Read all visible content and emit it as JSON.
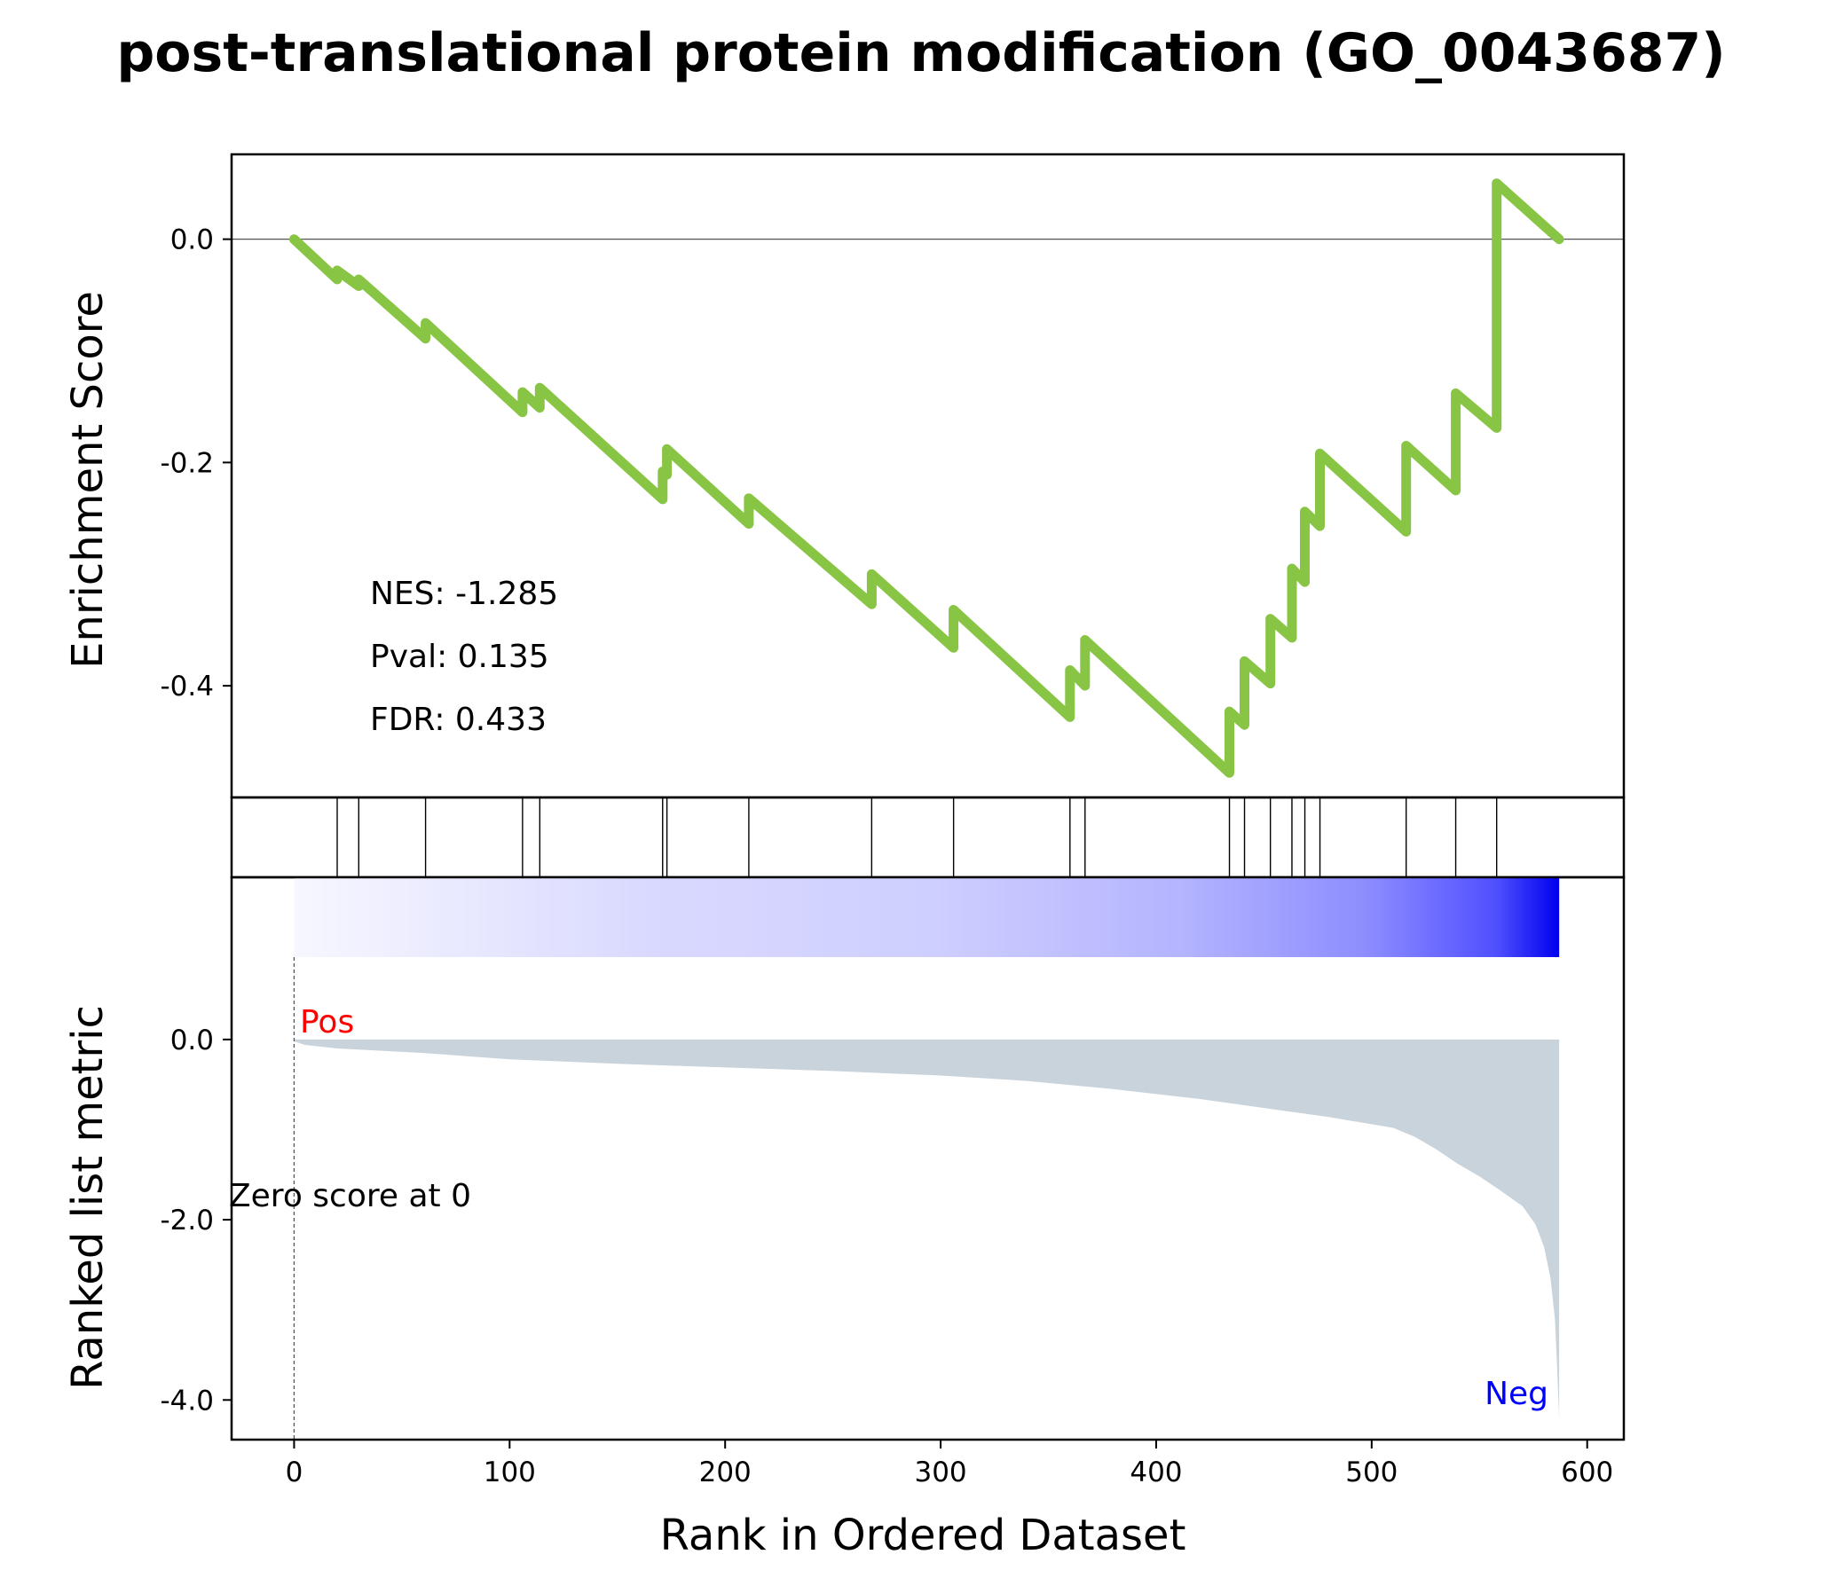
{
  "colors": {
    "es_line": "#88c544",
    "metric_fill": "#c9d3db",
    "pos_label": "#ff0000",
    "neg_label": "#0000ff",
    "heat_high": "#0000ff",
    "heat_low": "#ffffff"
  },
  "chart_data": {
    "type": "line",
    "title": "post-translational protein modification (GO_0043687)",
    "xlabel": "Rank in Ordered Dataset",
    "xlim": [
      -29,
      617
    ],
    "xticks": [
      "0",
      "100",
      "200",
      "300",
      "400",
      "500",
      "600"
    ],
    "stats": {
      "nes": "NES: -1.285",
      "pval": "Pval: 0.135",
      "fdr": "FDR: 0.433"
    },
    "enrichment": {
      "ylabel": "Enrichment Score",
      "ylim": [
        -0.5,
        0.076
      ],
      "yticks": [
        "0.0",
        "-0.2",
        "-0.4"
      ],
      "points": [
        [
          0,
          0.0
        ],
        [
          20,
          -0.036
        ],
        [
          20,
          -0.028
        ],
        [
          30,
          -0.042
        ],
        [
          30,
          -0.036
        ],
        [
          61,
          -0.089
        ],
        [
          61,
          -0.075
        ],
        [
          106,
          -0.155
        ],
        [
          106,
          -0.137
        ],
        [
          114,
          -0.151
        ],
        [
          114,
          -0.133
        ],
        [
          171,
          -0.233
        ],
        [
          171,
          -0.208
        ],
        [
          173,
          -0.211
        ],
        [
          173,
          -0.188
        ],
        [
          211,
          -0.255
        ],
        [
          211,
          -0.232
        ],
        [
          268,
          -0.327
        ],
        [
          268,
          -0.3
        ],
        [
          306,
          -0.366
        ],
        [
          306,
          -0.332
        ],
        [
          360,
          -0.428
        ],
        [
          360,
          -0.386
        ],
        [
          367,
          -0.4
        ],
        [
          367,
          -0.359
        ],
        [
          434,
          -0.478
        ],
        [
          434,
          -0.423
        ],
        [
          441,
          -0.435
        ],
        [
          441,
          -0.378
        ],
        [
          453,
          -0.398
        ],
        [
          453,
          -0.34
        ],
        [
          463,
          -0.357
        ],
        [
          463,
          -0.295
        ],
        [
          469,
          -0.307
        ],
        [
          469,
          -0.244
        ],
        [
          476,
          -0.257
        ],
        [
          476,
          -0.192
        ],
        [
          516,
          -0.262
        ],
        [
          516,
          -0.185
        ],
        [
          539,
          -0.225
        ],
        [
          539,
          -0.138
        ],
        [
          558,
          -0.169
        ],
        [
          558,
          0.05
        ],
        [
          587,
          0.0
        ]
      ]
    },
    "hits": [
      20,
      30,
      61,
      106,
      114,
      171,
      173,
      211,
      268,
      306,
      360,
      367,
      434,
      441,
      453,
      463,
      469,
      476,
      516,
      539,
      558
    ],
    "ranked_metric": {
      "ylabel": "Ranked list metric",
      "ylim": [
        -4.44,
        1.8
      ],
      "yticks": [
        "0.0",
        "-2.0",
        "-4.0"
      ],
      "pos_label": "Pos",
      "neg_label": "Neg",
      "zero_score_label": "Zero score at 0",
      "n_genes": 588,
      "curve": [
        [
          0,
          -0.02
        ],
        [
          5,
          -0.06
        ],
        [
          20,
          -0.1
        ],
        [
          60,
          -0.15
        ],
        [
          100,
          -0.22
        ],
        [
          150,
          -0.27
        ],
        [
          200,
          -0.31
        ],
        [
          250,
          -0.35
        ],
        [
          300,
          -0.4
        ],
        [
          340,
          -0.46
        ],
        [
          380,
          -0.55
        ],
        [
          420,
          -0.66
        ],
        [
          450,
          -0.76
        ],
        [
          480,
          -0.86
        ],
        [
          510,
          -0.98
        ],
        [
          520,
          -1.08
        ],
        [
          530,
          -1.22
        ],
        [
          540,
          -1.38
        ],
        [
          550,
          -1.52
        ],
        [
          560,
          -1.68
        ],
        [
          570,
          -1.85
        ],
        [
          576,
          -2.05
        ],
        [
          580,
          -2.3
        ],
        [
          583,
          -2.65
        ],
        [
          585,
          -3.1
        ],
        [
          586,
          -3.6
        ],
        [
          587,
          -4.2
        ]
      ]
    }
  }
}
